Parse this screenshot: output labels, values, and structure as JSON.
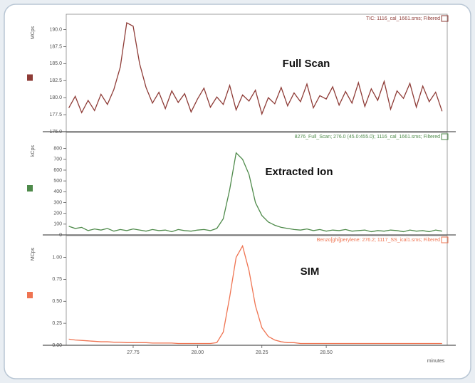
{
  "chart_data": [
    {
      "type": "line",
      "title": "TIC: 1116_cal_1661.sms; Filtered",
      "annotation": "Full Scan",
      "y_label": "MCps",
      "x": [
        27.5,
        27.525,
        27.55,
        27.575,
        27.6,
        27.625,
        27.65,
        27.675,
        27.7,
        27.725,
        27.75,
        27.775,
        27.8,
        27.825,
        27.85,
        27.875,
        27.9,
        27.925,
        27.95,
        27.975,
        28.0,
        28.025,
        28.05,
        28.075,
        28.1,
        28.125,
        28.15,
        28.175,
        28.2,
        28.225,
        28.25,
        28.275,
        28.3,
        28.325,
        28.35,
        28.375,
        28.4,
        28.425,
        28.45,
        28.475,
        28.5,
        28.525,
        28.55,
        28.575,
        28.6,
        28.625,
        28.65,
        28.675,
        28.7,
        28.725,
        28.75,
        28.775,
        28.8,
        28.825,
        28.85,
        28.875,
        28.9,
        28.925,
        28.95
      ],
      "series": [
        {
          "color": "#8e3b36",
          "values": [
            178.5,
            180.2,
            177.8,
            179.6,
            178.1,
            180.5,
            179.0,
            181.2,
            184.5,
            191.0,
            190.5,
            185.0,
            181.5,
            179.2,
            180.8,
            178.4,
            181.0,
            179.3,
            180.6,
            177.9,
            179.8,
            181.4,
            178.6,
            180.1,
            179.0,
            181.8,
            178.2,
            180.4,
            179.5,
            181.1,
            177.6,
            180.0,
            179.1,
            181.5,
            178.8,
            180.7,
            179.4,
            182.0,
            178.5,
            180.3,
            179.8,
            181.6,
            178.9,
            180.9,
            179.2,
            182.2,
            178.7,
            181.3,
            179.6,
            182.4,
            178.3,
            181.0,
            179.9,
            182.1,
            178.6,
            181.7,
            179.4,
            180.8,
            178.0
          ]
        }
      ],
      "xlim": [
        27.49,
        28.97
      ],
      "ylim": [
        175,
        191
      ],
      "yticks": [
        {
          "value": 175,
          "label": "175.0"
        },
        177.5,
        {
          "value": 180,
          "label": "180.0"
        },
        182.5,
        {
          "value": 185,
          "label": "185.0"
        },
        187.5,
        {
          "value": 190,
          "label": "190.0"
        }
      ]
    },
    {
      "type": "line",
      "title": "8276_Full_Scan; 276.0 (45.0:455.0); 1116_cal_1661.sms; Filtered",
      "annotation": "Extracted Ion",
      "y_label": "kCps",
      "x": [
        27.5,
        27.525,
        27.55,
        27.575,
        27.6,
        27.625,
        27.65,
        27.675,
        27.7,
        27.725,
        27.75,
        27.775,
        27.8,
        27.825,
        27.85,
        27.875,
        27.9,
        27.925,
        27.95,
        27.975,
        28.0,
        28.025,
        28.05,
        28.075,
        28.1,
        28.125,
        28.15,
        28.175,
        28.2,
        28.225,
        28.25,
        28.275,
        28.3,
        28.325,
        28.35,
        28.375,
        28.4,
        28.425,
        28.45,
        28.475,
        28.5,
        28.525,
        28.55,
        28.575,
        28.6,
        28.625,
        28.65,
        28.675,
        28.7,
        28.725,
        28.75,
        28.775,
        28.8,
        28.825,
        28.85,
        28.875,
        28.9,
        28.925,
        28.95
      ],
      "series": [
        {
          "color": "#4e8a4a",
          "values": [
            80,
            60,
            70,
            40,
            55,
            45,
            60,
            35,
            50,
            40,
            55,
            45,
            35,
            50,
            40,
            45,
            30,
            50,
            40,
            35,
            45,
            50,
            40,
            60,
            150,
            420,
            760,
            700,
            560,
            300,
            180,
            120,
            90,
            70,
            60,
            50,
            45,
            55,
            40,
            50,
            35,
            45,
            40,
            50,
            35,
            40,
            45,
            30,
            40,
            35,
            45,
            40,
            30,
            45,
            35,
            40,
            30,
            45,
            35
          ]
        }
      ],
      "xlim": [
        27.49,
        28.97
      ],
      "ylim": [
        0,
        870
      ],
      "yticks": [
        0,
        100,
        200,
        300,
        400,
        500,
        600,
        700,
        800
      ]
    },
    {
      "type": "line",
      "title": "Benzo[ghi]perylene: 276.2; 1117_SS_ical1.sms; Filtered",
      "annotation": "SIM",
      "y_label": "MCps",
      "x_label": "minutes",
      "x": [
        27.5,
        27.525,
        27.55,
        27.575,
        27.6,
        27.625,
        27.65,
        27.675,
        27.7,
        27.725,
        27.75,
        27.775,
        27.8,
        27.825,
        27.85,
        27.875,
        27.9,
        27.925,
        27.95,
        27.975,
        28.0,
        28.025,
        28.05,
        28.075,
        28.1,
        28.125,
        28.15,
        28.175,
        28.2,
        28.225,
        28.25,
        28.275,
        28.3,
        28.325,
        28.35,
        28.375,
        28.4,
        28.425,
        28.45,
        28.475,
        28.5,
        28.525,
        28.55,
        28.575,
        28.6,
        28.625,
        28.65,
        28.675,
        28.7,
        28.725,
        28.75,
        28.775,
        28.8,
        28.825,
        28.85,
        28.875,
        28.9,
        28.925,
        28.95
      ],
      "series": [
        {
          "color": "#ef7452",
          "values": [
            0.07,
            0.06,
            0.055,
            0.05,
            0.045,
            0.04,
            0.04,
            0.035,
            0.035,
            0.03,
            0.03,
            0.03,
            0.03,
            0.025,
            0.025,
            0.025,
            0.025,
            0.02,
            0.02,
            0.02,
            0.02,
            0.02,
            0.02,
            0.03,
            0.15,
            0.55,
            1.0,
            1.13,
            0.85,
            0.45,
            0.2,
            0.1,
            0.06,
            0.04,
            0.03,
            0.03,
            0.02,
            0.02,
            0.02,
            0.02,
            0.02,
            0.02,
            0.02,
            0.02,
            0.02,
            0.02,
            0.02,
            0.02,
            0.02,
            0.02,
            0.02,
            0.02,
            0.02,
            0.02,
            0.02,
            0.02,
            0.02,
            0.02,
            0.02
          ]
        }
      ],
      "xlim": [
        27.49,
        28.97
      ],
      "ylim": [
        0,
        1.15
      ],
      "yticks": [
        {
          "value": 0,
          "label": "0.00"
        },
        0.25,
        {
          "value": 0.5,
          "label": "0.50"
        },
        0.75,
        {
          "value": 1,
          "label": "1.00"
        }
      ],
      "xticks": [
        27.75,
        {
          "value": 28,
          "label": "28.00"
        },
        28.25,
        {
          "value": 28.5,
          "label": "28.50"
        }
      ]
    }
  ]
}
